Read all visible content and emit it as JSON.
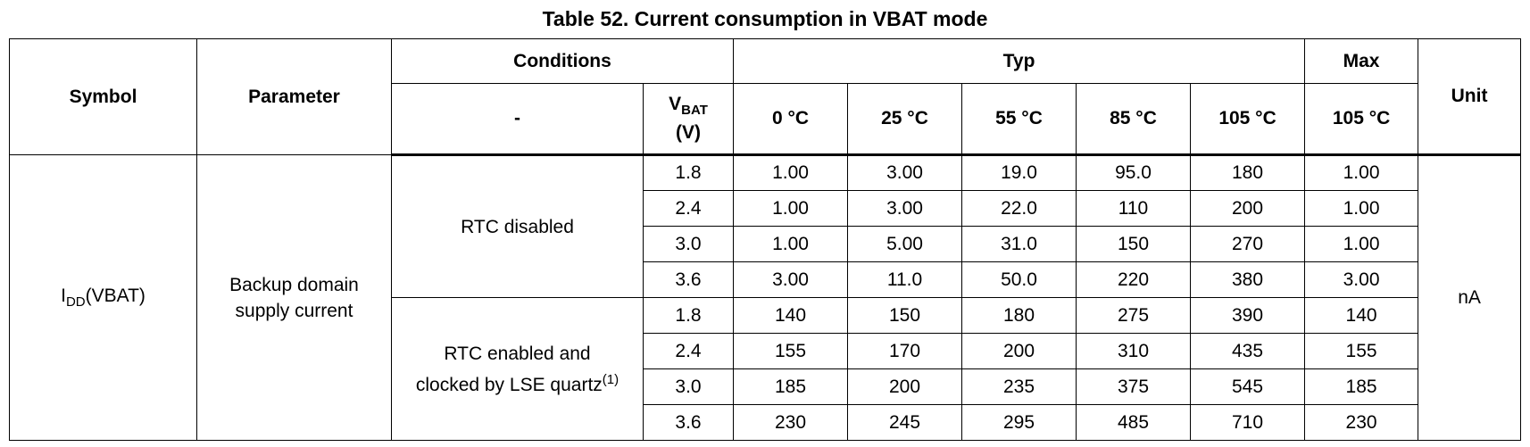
{
  "caption": "Table 52. Current consumption in VBAT mode",
  "headers": {
    "symbol": "Symbol",
    "parameter": "Parameter",
    "conditions": "Conditions",
    "typ": "Typ",
    "max": "Max",
    "unit": "Unit",
    "cond_dash": "-",
    "vbat_main": "V",
    "vbat_sub": "BAT",
    "vbat_unit": "(V)",
    "temps_typ": [
      "0 °C",
      "25 °C",
      "55 °C",
      "85 °C",
      "105 °C"
    ],
    "temp_max": "105 °C"
  },
  "symbol": {
    "main": "I",
    "sub": "DD",
    "suffix": "(VBAT)"
  },
  "parameter": {
    "line1": "Backup domain",
    "line2": "supply current"
  },
  "unit": "nA",
  "groups": [
    {
      "condition_line1": "RTC disabled",
      "condition_line2": "",
      "footnote": "",
      "rows": [
        {
          "vbat": "1.8",
          "typ": [
            "1.00",
            "3.00",
            "19.0",
            "95.0",
            "180"
          ],
          "max": "1.00"
        },
        {
          "vbat": "2.4",
          "typ": [
            "1.00",
            "3.00",
            "22.0",
            "110",
            "200"
          ],
          "max": "1.00"
        },
        {
          "vbat": "3.0",
          "typ": [
            "1.00",
            "5.00",
            "31.0",
            "150",
            "270"
          ],
          "max": "1.00"
        },
        {
          "vbat": "3.6",
          "typ": [
            "3.00",
            "11.0",
            "50.0",
            "220",
            "380"
          ],
          "max": "3.00"
        }
      ]
    },
    {
      "condition_line1": "RTC enabled and",
      "condition_line2": "clocked by LSE quartz",
      "footnote": "(1)",
      "rows": [
        {
          "vbat": "1.8",
          "typ": [
            "140",
            "150",
            "180",
            "275",
            "390"
          ],
          "max": "140"
        },
        {
          "vbat": "2.4",
          "typ": [
            "155",
            "170",
            "200",
            "310",
            "435"
          ],
          "max": "155"
        },
        {
          "vbat": "3.0",
          "typ": [
            "185",
            "200",
            "235",
            "375",
            "545"
          ],
          "max": "185"
        },
        {
          "vbat": "3.6",
          "typ": [
            "230",
            "245",
            "295",
            "485",
            "710"
          ],
          "max": "230"
        }
      ]
    }
  ]
}
